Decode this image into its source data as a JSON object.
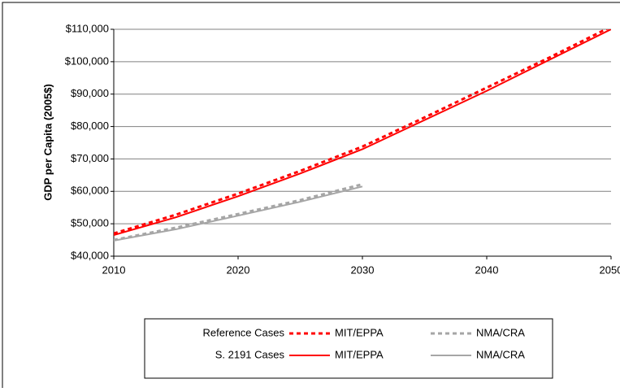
{
  "chart_data": {
    "type": "line",
    "ylabel": "GDP per Capita (2005$)",
    "x": [
      2010,
      2015,
      2020,
      2025,
      2030,
      2035,
      2040,
      2045,
      2050
    ],
    "xlim": [
      2010,
      2050
    ],
    "xticks": [
      2010,
      2020,
      2030,
      2040,
      2050
    ],
    "ylim": [
      40000,
      110000
    ],
    "yticks": [
      {
        "value": 40000,
        "label": "$40,000"
      },
      {
        "value": 50000,
        "label": "$50,000"
      },
      {
        "value": 60000,
        "label": "$60,000"
      },
      {
        "value": 70000,
        "label": "$70,000"
      },
      {
        "value": 80000,
        "label": "$80,000"
      },
      {
        "value": 90000,
        "label": "$90,000"
      },
      {
        "value": 100000,
        "label": "$100,000"
      },
      {
        "value": 110000,
        "label": "$110,000"
      }
    ],
    "grid": true,
    "legend_groups": [
      "Reference Cases",
      "S. 2191 Cases"
    ],
    "series": [
      {
        "name": "MIT/EPPA",
        "color": "#ff0000",
        "dashed": true,
        "values": [
          47000,
          52800,
          59300,
          66300,
          73800,
          82800,
          92000,
          101200,
          110800
        ]
      },
      {
        "name": "NMA/CRA",
        "color": "#a6a6a6",
        "dashed": true,
        "values": [
          45000,
          48800,
          53000,
          57300,
          62200,
          null,
          null,
          null,
          null
        ]
      },
      {
        "name": "MIT/EPPA",
        "color": "#ff0000",
        "dashed": false,
        "values": [
          46500,
          52000,
          58500,
          65500,
          73000,
          82000,
          91000,
          100500,
          110000
        ]
      },
      {
        "name": "NMA/CRA",
        "color": "#a6a6a6",
        "dashed": false,
        "values": [
          44800,
          48300,
          52500,
          56800,
          61500,
          null,
          null,
          null,
          null
        ]
      }
    ]
  }
}
